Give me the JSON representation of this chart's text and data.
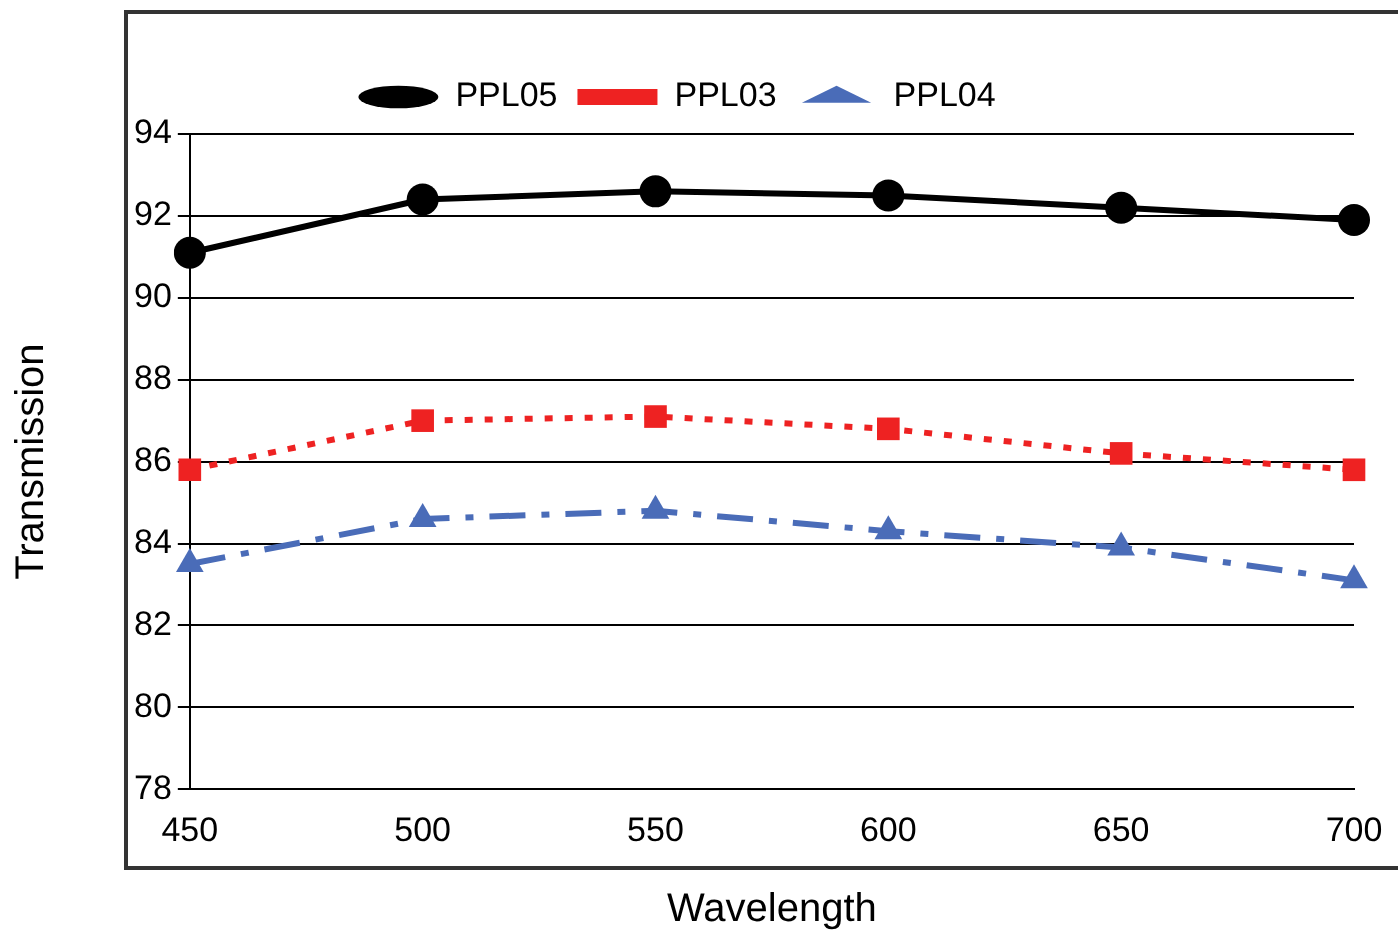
{
  "chart_data": {
    "type": "line",
    "xlabel": "Wavelength",
    "ylabel": "Transmission",
    "categories": [
      "450",
      "500",
      "550",
      "600",
      "650",
      "700"
    ],
    "ylim": [
      78,
      94
    ],
    "yticks": [
      78,
      80,
      82,
      84,
      86,
      88,
      90,
      92,
      94
    ],
    "grid": "y",
    "legend": "top",
    "series": [
      {
        "name": "PPL05",
        "color": "#000000",
        "marker": "circle",
        "line_style": "solid",
        "values": [
          91.1,
          92.4,
          92.6,
          92.5,
          92.2,
          91.9
        ]
      },
      {
        "name": "PPL03",
        "color": "#ee2222",
        "marker": "square",
        "line_style": "dotted",
        "values": [
          85.8,
          87.0,
          87.1,
          86.8,
          86.2,
          85.8
        ]
      },
      {
        "name": "PPL04",
        "color": "#4a6cb8",
        "marker": "triangle",
        "line_style": "dashed",
        "values": [
          83.5,
          84.6,
          84.8,
          84.3,
          83.9,
          83.1
        ]
      }
    ]
  }
}
